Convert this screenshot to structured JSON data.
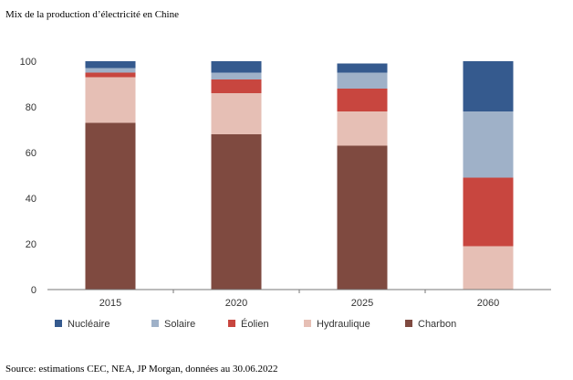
{
  "chart_data": {
    "type": "bar",
    "stacked": true,
    "title": "Mix de la production d’électricité en Chine",
    "source": "Source: estimations CEC, NEA, JP Morgan, données au 30.06.2022",
    "categories": [
      "2015",
      "2020",
      "2025",
      "2060"
    ],
    "ylim": [
      0,
      100
    ],
    "yticks": [
      0,
      20,
      40,
      60,
      80,
      100
    ],
    "legend_position": "bottom",
    "series": [
      {
        "name": "Charbon",
        "color": "#7f4a40",
        "values": [
          73,
          68,
          63,
          0
        ]
      },
      {
        "name": "Hydraulique",
        "color": "#e6bfb5",
        "values": [
          20,
          18,
          15,
          19
        ]
      },
      {
        "name": "Éolien",
        "color": "#c8463f",
        "values": [
          2,
          6,
          10,
          30
        ]
      },
      {
        "name": "Solaire",
        "color": "#9fb1c8",
        "values": [
          2,
          3,
          7,
          29
        ]
      },
      {
        "name": "Nucléaire",
        "color": "#355a8e",
        "values": [
          3,
          5,
          4,
          22
        ]
      }
    ],
    "legend_order": [
      "Nucléaire",
      "Solaire",
      "Éolien",
      "Hydraulique",
      "Charbon"
    ]
  }
}
